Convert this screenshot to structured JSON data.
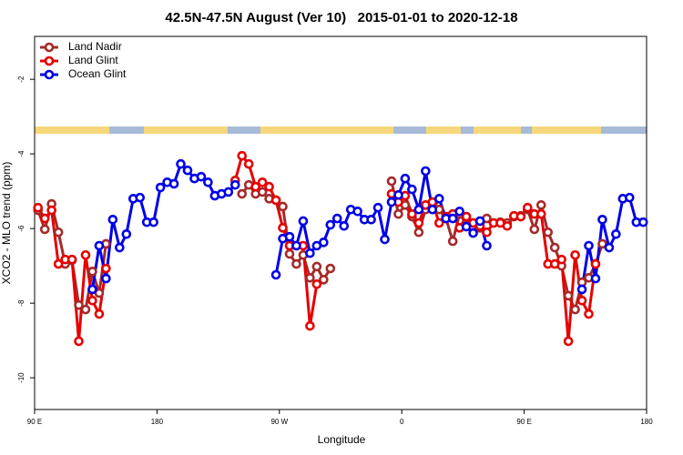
{
  "chart_data": {
    "type": "line",
    "title": "42.5N-47.5N August (Ver 10)   2015-01-01 to 2020-12-18",
    "xlabel": "Longitude",
    "ylabel": "XCO2 - MLO trend (ppm)",
    "xlim": [
      90,
      540
    ],
    "ylim": [
      -10.85,
      -0.85
    ],
    "xticks": [
      {
        "value": 90,
        "label": "90 E"
      },
      {
        "value": 180,
        "label": "180"
      },
      {
        "value": 270,
        "label": "90 W"
      },
      {
        "value": 360,
        "label": "0"
      },
      {
        "value": 450,
        "label": "90 E"
      },
      {
        "value": 540,
        "label": "180"
      }
    ],
    "yticks": [
      -2,
      -4,
      -6,
      -8,
      -10
    ],
    "legend": "top-left",
    "series": [
      {
        "name": "Land Nadir",
        "color": "#a52a2a",
        "x": [
          92.5,
          97.5,
          102.5,
          107.5,
          112.5,
          117.5,
          122.5,
          127.5,
          132.5,
          137.5,
          142.5,
          null,
          242.5,
          247.5,
          252.5,
          257.5,
          262.5,
          267.5,
          272.5,
          277.5,
          282.5,
          287.5,
          292.5,
          297.5,
          302.5,
          307.5,
          null,
          352.5,
          357.5,
          362.5,
          367.5,
          372.5,
          377.5,
          382.5,
          387.5,
          392.5,
          397.5,
          402.5,
          407.5,
          412.5,
          417.5,
          422.5,
          427.5,
          432.5,
          437.5,
          442.5,
          447.5,
          452.5,
          457.5,
          462.5,
          467.5,
          472.5,
          477.5,
          482.5,
          487.5,
          492.5,
          497.5,
          502.5,
          507.5
        ],
        "values": [
          -5.51,
          -6.02,
          -5.34,
          -6.1,
          -6.95,
          -6.85,
          -8.05,
          -8.17,
          -7.15,
          -7.73,
          -6.41,
          null,
          -5.07,
          -4.83,
          -5.07,
          -5.02,
          -5.2,
          -5.24,
          -5.41,
          -6.68,
          -6.95,
          -6.71,
          -7.32,
          -7.02,
          -7.37,
          -7.07,
          null,
          -4.73,
          -5.61,
          -5.37,
          -5.68,
          -6.1,
          -5.49,
          -5.37,
          -5.49,
          -5.73,
          -6.34,
          -5.61,
          -5.73,
          -5.85,
          -5.98,
          -5.73,
          -5.85,
          -5.83,
          -5.85,
          -5.68,
          -5.66,
          -5.49,
          -6.02,
          -5.37,
          -6.1,
          -6.51,
          -7.0,
          -7.8,
          -8.17,
          -7.44,
          -7.32,
          -6.95,
          -6.41
        ]
      },
      {
        "name": "Land Glint",
        "color": "#e60000",
        "x": [
          92.5,
          97.5,
          102.5,
          107.5,
          112.5,
          117.5,
          122.5,
          127.5,
          132.5,
          137.5,
          142.5,
          null,
          237.5,
          242.5,
          247.5,
          252.5,
          257.5,
          262.5,
          267.5,
          272.5,
          277.5,
          282.5,
          287.5,
          292.5,
          297.5,
          null,
          352.5,
          357.5,
          362.5,
          367.5,
          372.5,
          377.5,
          382.5,
          387.5,
          392.5,
          397.5,
          402.5,
          407.5,
          412.5,
          417.5,
          422.5,
          427.5,
          432.5,
          437.5,
          442.5,
          447.5,
          452.5,
          457.5,
          462.5,
          467.5,
          472.5,
          477.5,
          482.5,
          487.5,
          492.5,
          497.5,
          502.5
        ],
        "values": [
          -5.44,
          -5.73,
          -5.51,
          -6.95,
          -6.83,
          -6.83,
          -9.02,
          -6.71,
          -7.93,
          -8.29,
          -7.07,
          null,
          -4.71,
          -4.05,
          -4.27,
          -4.88,
          -4.76,
          -4.88,
          -5.24,
          -5.98,
          -6.46,
          -6.46,
          -6.46,
          -8.61,
          -7.49,
          null,
          -5.07,
          -5.29,
          -5.12,
          -5.61,
          -5.85,
          -5.37,
          -5.29,
          -5.85,
          -5.68,
          -5.61,
          -5.98,
          -5.68,
          -5.85,
          -5.93,
          -6.1,
          -5.85,
          -5.85,
          -5.93,
          -5.66,
          -5.68,
          -5.44,
          -5.61,
          -5.61,
          -6.95,
          -6.95,
          -6.83,
          -9.02,
          -6.71,
          -7.93,
          -8.29,
          -6.95
        ]
      },
      {
        "name": "Ocean Glint",
        "color": "#0000e6",
        "x": [
          132.5,
          137.5,
          142.5,
          147.5,
          152.5,
          157.5,
          162.5,
          167.5,
          172.5,
          177.5,
          182.5,
          187.5,
          192.5,
          197.5,
          202.5,
          207.5,
          212.5,
          217.5,
          222.5,
          227.5,
          232.5,
          237.5,
          null,
          267.5,
          272.5,
          277.5,
          282.5,
          287.5,
          292.5,
          297.5,
          302.5,
          307.5,
          312.5,
          317.5,
          322.5,
          327.5,
          332.5,
          337.5,
          342.5,
          347.5,
          352.5,
          357.5,
          362.5,
          367.5,
          372.5,
          377.5,
          382.5,
          387.5,
          392.5,
          397.5,
          402.5,
          407.5,
          412.5,
          417.5,
          422.5,
          null,
          492.5,
          497.5,
          502.5,
          507.5,
          512.5,
          517.5,
          522.5,
          527.5,
          532.5,
          537.5
        ],
        "values": [
          -7.63,
          -6.46,
          -7.34,
          -5.76,
          -6.51,
          -6.15,
          -5.2,
          -5.17,
          -5.83,
          -5.83,
          -4.9,
          -4.76,
          -4.8,
          -4.27,
          -4.44,
          -4.66,
          -4.61,
          -4.76,
          -5.12,
          -5.07,
          -5.02,
          -4.83,
          null,
          -7.24,
          -6.27,
          -6.22,
          -6.46,
          -5.8,
          -6.66,
          -6.46,
          -6.37,
          -5.9,
          -5.73,
          -5.93,
          -5.49,
          -5.54,
          -5.76,
          -5.76,
          -5.44,
          -6.29,
          -5.29,
          -5.1,
          -4.66,
          -4.95,
          -5.49,
          -4.46,
          -5.49,
          -5.2,
          -5.73,
          -5.73,
          -5.54,
          -5.95,
          -6.12,
          -5.8,
          -6.46,
          null,
          -7.63,
          -6.46,
          -7.34,
          -5.76,
          -6.51,
          -6.15,
          -5.2,
          -5.17,
          -5.83,
          -5.83
        ]
      }
    ]
  }
}
